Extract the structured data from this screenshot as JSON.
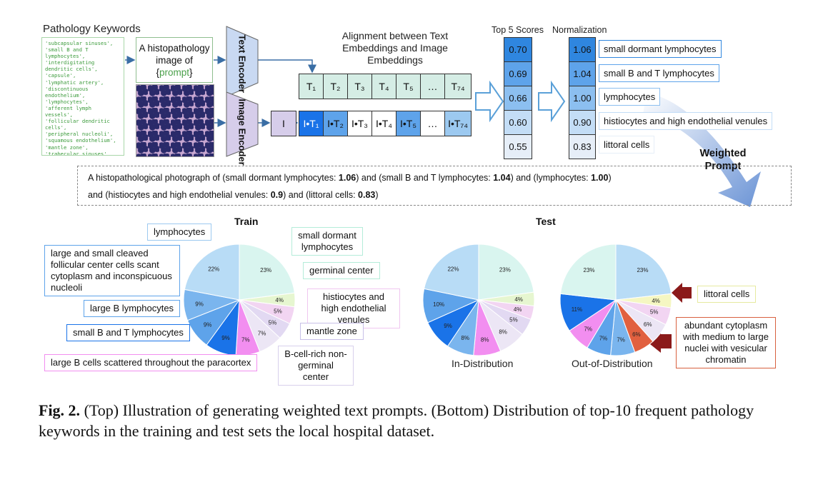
{
  "top": {
    "keywords_title": "Pathology Keywords",
    "keywords": [
      "'subcapsular sinuses',",
      "'small B and T",
      "lymphocytes',",
      "'interdigitating",
      "dendritic cells',",
      "'capsule',",
      "'lymphatic artery',",
      "'discontinuous",
      "endothelium',",
      "'lymphocytes',",
      "'afferent lymph",
      "vessels',",
      "'follicular dendritic",
      "cells',",
      "'peripheral nucleoli',",
      "'squamous endothelium',",
      "'mantle zone',",
      "'trabecular sinuses',"
    ],
    "prompt_line1": "A histopathology",
    "prompt_line2": "image of",
    "prompt_open": "{",
    "prompt_word": "prompt",
    "prompt_close": "}",
    "text_encoder": "Text Encoder",
    "image_encoder": "Image Encoder",
    "alignment_title": "Alignment between Text Embeddings and Image Embeddings",
    "t_cells": [
      "T₁",
      "T₂",
      "T₃",
      "T₄",
      "T₅",
      "…",
      "T₇₄"
    ],
    "i_label": "I",
    "i_cells": [
      "I•T₁",
      "I•T₂",
      "I•T₃",
      "I•T₄",
      "I•T₅",
      "…",
      "I•T₇₄"
    ],
    "i_colors": [
      "#1a73e8",
      "#5ea3ea",
      "#ffffff",
      "#ffffff",
      "#5ea3ea",
      "#ffffff",
      "#9cc9f0"
    ],
    "top5_title": "Top 5 Scores",
    "top5": [
      "0.70",
      "0.69",
      "0.66",
      "0.60",
      "0.55"
    ],
    "top5_colors": [
      "#2f86df",
      "#5ea3ea",
      "#8cbff0",
      "#c3ddf6",
      "#e6eef8"
    ],
    "norm_title": "Normalization",
    "norm": [
      "1.06",
      "1.04",
      "1.00",
      "0.90",
      "0.83"
    ],
    "norm_colors": [
      "#2f86df",
      "#5ea3ea",
      "#8cbff0",
      "#c3ddf6",
      "#e6eef8"
    ],
    "labels": [
      "small dormant lymphocytes",
      "small B and T lymphocytes",
      "lymphocytes",
      "histiocytes and high endothelial venules",
      "littoral cells"
    ],
    "weighted_prompt": "Weighted Prompt",
    "wp_parts": {
      "p1": "A histopathological photograph of (small dormant lymphocytes: ",
      "v1": "1.06",
      "p2": ") and (small B and T lymphocytes: ",
      "v2": "1.04",
      "p3": ") and (lymphocytes: ",
      "v3": "1.00",
      "p4": ")",
      "p5": "and (histiocytes and high endothelial venules: ",
      "v4": "0.9",
      "p6": ") and (littoral cells: ",
      "v5": "0.83",
      "p7": ")"
    }
  },
  "bottom": {
    "train_title": "Train",
    "test_title": "Test",
    "in_dist": "In-Distribution",
    "out_dist": "Out-of-Distribution",
    "train_labels": {
      "lymphocytes": "lymphocytes",
      "cleaved": "large and small cleaved follicular center cells scant cytoplasm and inconspicuous nucleoli",
      "largeB": "large B lymphocytes",
      "smallBT": "small B and T lymphocytes",
      "largeBcells": "large B cells scattered throughout the paracortex",
      "dormant": "small dormant lymphocytes",
      "germinal": "germinal center",
      "histio": "histiocytes and high endothelial venules",
      "mantle": "mantle zone",
      "bcell": "B-cell-rich non-germinal center"
    },
    "ood_labels": {
      "littoral": "littoral cells",
      "abundant": "abundant cytoplasm with medium to large nuclei with vesicular chromatin"
    }
  },
  "chart_data": [
    {
      "type": "pie",
      "title": "Train",
      "values": [
        23,
        4,
        5,
        5,
        7,
        7,
        9,
        9,
        9,
        22
      ],
      "labels": [
        "23%",
        "4%",
        "5%",
        "5%",
        "7%",
        "7%",
        "9%",
        "9%",
        "9%",
        "22%"
      ],
      "colors": [
        "#d9f5ef",
        "#e6f6d0",
        "#f2d5f2",
        "#e2d9f2",
        "#ece6f5",
        "#f28ef0",
        "#1a73e8",
        "#5ea3ea",
        "#7ab5ee",
        "#b8dcf6"
      ]
    },
    {
      "type": "pie",
      "title": "In-Distribution",
      "values": [
        23,
        4,
        4,
        5,
        8,
        8,
        8,
        9,
        10,
        22
      ],
      "labels": [
        "23%",
        "4%",
        "4%",
        "5%",
        "8%",
        "8%",
        "8%",
        "9%",
        "10%",
        "22%"
      ],
      "colors": [
        "#d9f5ef",
        "#e6f6d0",
        "#f2d5f2",
        "#e2d9f2",
        "#ece6f5",
        "#f28ef0",
        "#7ab5ee",
        "#1a73e8",
        "#5ea3ea",
        "#b8dcf6"
      ]
    },
    {
      "type": "pie",
      "title": "Out-of-Distribution",
      "values": [
        23,
        4,
        5,
        6,
        6,
        7,
        7,
        7,
        11,
        23
      ],
      "labels": [
        "23%",
        "4%",
        "5%",
        "6%",
        "6%",
        "7%",
        "7%",
        "7%",
        "11%",
        "23%"
      ],
      "colors": [
        "#b8dcf6",
        "#f5f7c2",
        "#f2d5f2",
        "#ece6f5",
        "#e1603f",
        "#7ab5ee",
        "#5ea3ea",
        "#f28ef0",
        "#1a73e8",
        "#d9f5ef"
      ]
    }
  ],
  "caption": {
    "fig": "Fig. 2.",
    "text": " (Top) Illustration of generating weighted text prompts. (Bottom) Distribution of top-10 frequent pathology keywords in the training and test sets the local hospital dataset."
  }
}
